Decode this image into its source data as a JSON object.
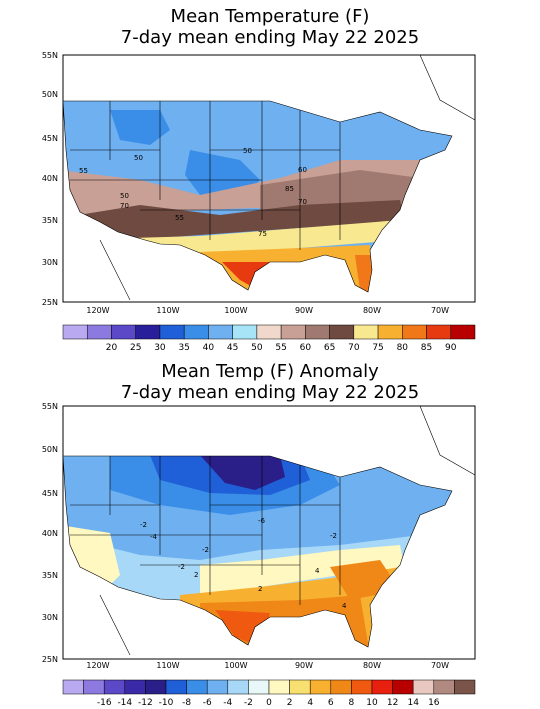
{
  "panels": [
    {
      "title_line1": "Mean Temperature (F)",
      "title_line2": "7-day mean ending May 22 2025",
      "lat_labels": [
        "55N",
        "50N",
        "45N",
        "40N",
        "35N",
        "30N",
        "25N"
      ],
      "lon_labels": [
        "120W",
        "110W",
        "100W",
        "90W",
        "80W",
        "70W"
      ],
      "colorbar": {
        "colors": [
          "#b8a9f0",
          "#8c7ae0",
          "#5b49c8",
          "#2a1f9a",
          "#1f5fd8",
          "#3a8ee8",
          "#6fb0f0",
          "#a8e4f8",
          "#f0d8cc",
          "#c8a095",
          "#a07a70",
          "#6e4a40",
          "#f8e890",
          "#f8b030",
          "#f07818",
          "#e83a10",
          "#b80000"
        ],
        "labels": [
          "20",
          "25",
          "30",
          "35",
          "40",
          "45",
          "50",
          "55",
          "60",
          "65",
          "70",
          "75",
          "80",
          "85",
          "90"
        ]
      },
      "contour_labels": [
        "50",
        "50",
        "55",
        "50",
        "60",
        "85",
        "70",
        "75",
        "70",
        "55"
      ]
    },
    {
      "title_line1": "Mean Temp (F) Anomaly",
      "title_line2": "7-day mean ending May 22 2025",
      "lat_labels": [
        "55N",
        "50N",
        "45N",
        "40N",
        "35N",
        "30N",
        "25N"
      ],
      "lon_labels": [
        "120W",
        "110W",
        "100W",
        "90W",
        "80W",
        "70W"
      ],
      "colorbar": {
        "colors": [
          "#b8a9f0",
          "#8c7ae0",
          "#5b49c8",
          "#3a2aa8",
          "#2a1f88",
          "#1f5fd8",
          "#3a8ee8",
          "#6fb0f0",
          "#a8d8f8",
          "#e8f8f8",
          "#fff8c0",
          "#f8e070",
          "#f8b030",
          "#f08818",
          "#f05a10",
          "#e82010",
          "#b80000",
          "#e8c8c0",
          "#b08a80",
          "#7a5448"
        ],
        "labels": [
          "-16",
          "-14",
          "-12",
          "-10",
          "-8",
          "-6",
          "-4",
          "-2",
          "0",
          "2",
          "4",
          "6",
          "8",
          "10",
          "12",
          "14",
          "16"
        ]
      },
      "contour_labels": [
        "-2",
        "-4",
        "-6",
        "-2",
        "-2",
        "2",
        "4",
        "4",
        "2",
        "-2"
      ]
    }
  ]
}
